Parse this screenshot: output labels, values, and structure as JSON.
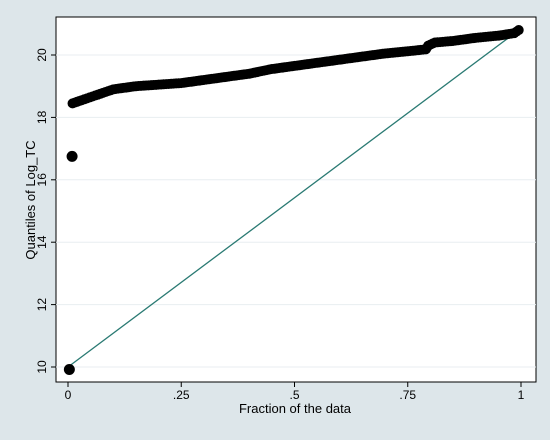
{
  "chart_data": {
    "type": "scatter",
    "xlabel": "Fraction of the data",
    "ylabel": "Quantiles of Log_TC",
    "xlim": [
      0,
      1
    ],
    "ylim": [
      9.8,
      21.2
    ],
    "x_ticks": [
      {
        "value": 0,
        "label": "0"
      },
      {
        "value": 0.25,
        "label": ".25"
      },
      {
        "value": 0.5,
        "label": ".5"
      },
      {
        "value": 0.75,
        "label": ".75"
      },
      {
        "value": 1,
        "label": "1"
      }
    ],
    "y_ticks": [
      {
        "value": 10,
        "label": "10"
      },
      {
        "value": 12,
        "label": "12"
      },
      {
        "value": 14,
        "label": "14"
      },
      {
        "value": 16,
        "label": "16"
      },
      {
        "value": 18,
        "label": "18"
      },
      {
        "value": 20,
        "label": "20"
      }
    ],
    "grid": true,
    "series": [
      {
        "color": "#000000",
        "curve_knots": [
          [
            0.01,
            18.45
          ],
          [
            0.03,
            18.55
          ],
          [
            0.06,
            18.7
          ],
          [
            0.1,
            18.9
          ],
          [
            0.15,
            19.0
          ],
          [
            0.2,
            19.05
          ],
          [
            0.25,
            19.1
          ],
          [
            0.3,
            19.2
          ],
          [
            0.35,
            19.3
          ],
          [
            0.4,
            19.4
          ],
          [
            0.45,
            19.55
          ],
          [
            0.5,
            19.65
          ],
          [
            0.55,
            19.75
          ],
          [
            0.6,
            19.85
          ],
          [
            0.65,
            19.95
          ],
          [
            0.7,
            20.05
          ],
          [
            0.75,
            20.12
          ],
          [
            0.79,
            20.18
          ],
          [
            0.795,
            20.3
          ],
          [
            0.81,
            20.4
          ],
          [
            0.85,
            20.45
          ],
          [
            0.9,
            20.55
          ],
          [
            0.95,
            20.62
          ],
          [
            0.985,
            20.7
          ],
          [
            0.995,
            20.8
          ]
        ],
        "outliers": [
          [
            0.003,
            9.92
          ],
          [
            0.009,
            16.75
          ]
        ]
      }
    ],
    "reference_line": {
      "from": [
        0,
        10
      ],
      "to": [
        1,
        20.85
      ],
      "color": "#2a7a73"
    }
  }
}
